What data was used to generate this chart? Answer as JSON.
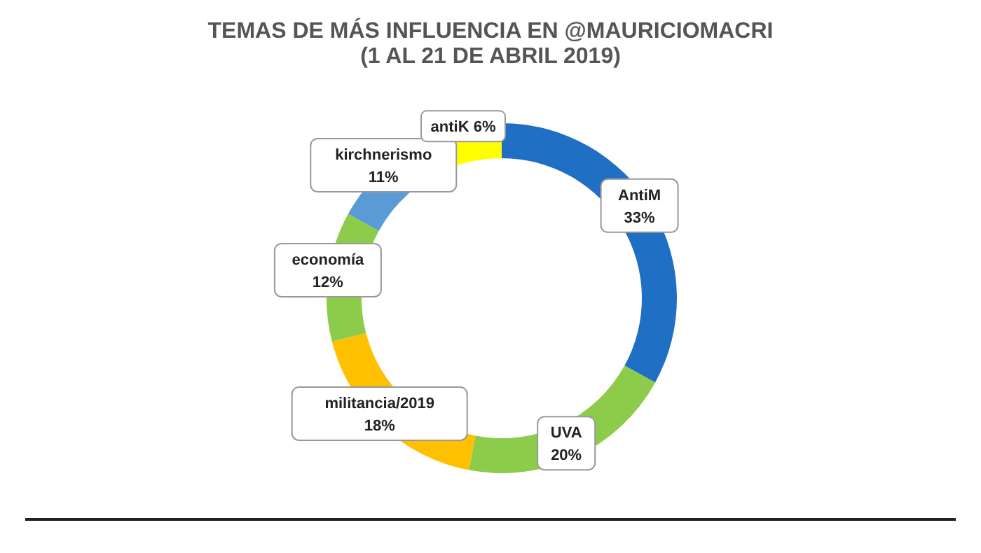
{
  "chart_data": {
    "type": "donut",
    "title": "TEMAS DE MÁS INFLUENCIA EN @MAURICIOMACRI",
    "subtitle": "(1 AL 21 DE ABRIL 2019)",
    "categories": [
      "AntiM",
      "UVA",
      "militancia/2019",
      "economía",
      "kirchnerismo",
      "antiK"
    ],
    "values": [
      33,
      20,
      18,
      12,
      11,
      6
    ],
    "value_labels": [
      "33%",
      "20%",
      "18%",
      "12%",
      "11%",
      "6%"
    ],
    "colors": [
      "#1f6fc4",
      "#8ccc4a",
      "#ffc000",
      "#8ccc4a",
      "#5b9bd5",
      "#ffff00"
    ],
    "legend": false
  }
}
